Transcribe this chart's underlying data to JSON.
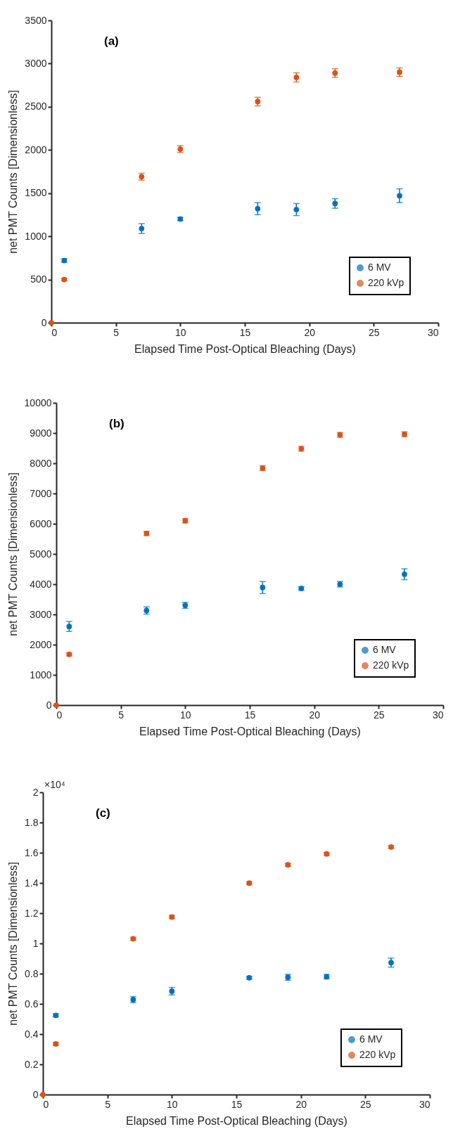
{
  "chart_data": [
    {
      "type": "scatter",
      "title": "(a)",
      "xlabel": "Elapsed Time Post-Optical Bleaching (Days)",
      "ylabel": "net PMT Counts [Dimensionless]",
      "xlim": [
        0,
        30
      ],
      "xticks": [
        0,
        5,
        10,
        15,
        20,
        25,
        30
      ],
      "ylim": [
        0,
        3500
      ],
      "yticks": [
        0,
        500,
        1000,
        1500,
        2000,
        2500,
        3000,
        3500
      ],
      "grid": false,
      "legend": "bottom right",
      "marker": "circle",
      "series": [
        {
          "name": "6 MV",
          "color": "#0072bd",
          "x": [
            1,
            7,
            10,
            16,
            19,
            22,
            27
          ],
          "values": [
            720,
            1090,
            1200,
            1320,
            1310,
            1380,
            1470
          ],
          "errors": [
            20,
            57,
            20,
            70,
            70,
            55,
            80
          ]
        },
        {
          "name": "220 kVp",
          "color": "#d95319",
          "x": [
            0,
            1,
            7,
            10,
            16,
            19,
            22,
            27
          ],
          "values": [
            0,
            500,
            1690,
            2010,
            2560,
            2840,
            2890,
            2900
          ],
          "errors": [
            null,
            15,
            40,
            40,
            50,
            53,
            50,
            50
          ]
        }
      ]
    },
    {
      "type": "scatter",
      "title": "(b)",
      "xlabel": "Elapsed Time Post-Optical Bleaching (Days)",
      "ylabel": "net PMT Counts [Dimensionless]",
      "xlim": [
        0,
        30
      ],
      "xticks": [
        0,
        5,
        10,
        15,
        20,
        25,
        30
      ],
      "ylim": [
        0,
        10000
      ],
      "yticks": [
        0,
        1000,
        2000,
        3000,
        4000,
        5000,
        6000,
        7000,
        8000,
        9000,
        10000
      ],
      "grid": false,
      "legend": "bottom right",
      "marker": "circle",
      "series": [
        {
          "name": "6 MV",
          "color": "#0072bd",
          "x": [
            1,
            7,
            10,
            16,
            19,
            22,
            27
          ],
          "values": [
            2600,
            3130,
            3300,
            3890,
            3860,
            4000,
            4330
          ],
          "errors": [
            165,
            120,
            100,
            200,
            60,
            90,
            180
          ]
        },
        {
          "name": "220 kVp",
          "color": "#d95319",
          "x": [
            0,
            1,
            7,
            10,
            16,
            19,
            22,
            27
          ],
          "values": [
            0,
            1680,
            5680,
            6100,
            7840,
            8480,
            8940,
            8960
          ],
          "errors": [
            null,
            50,
            70,
            70,
            80,
            80,
            80,
            80
          ]
        }
      ]
    },
    {
      "type": "scatter",
      "title": "(c)",
      "annotations": [
        "×10⁴"
      ],
      "xlabel": "Elapsed Time Post-Optical Bleaching (Days)",
      "ylabel": "net PMT Counts [Dimensionless]",
      "xlim": [
        0,
        30
      ],
      "xticks": [
        0,
        5,
        10,
        15,
        20,
        25,
        30
      ],
      "ylim": [
        0,
        2
      ],
      "yticks": [
        0,
        0.2,
        0.4,
        0.6,
        0.8,
        1,
        1.2,
        1.4,
        1.6,
        1.8,
        2
      ],
      "grid": false,
      "legend": "bottom right",
      "marker": "circle",
      "series": [
        {
          "name": "6 MV",
          "color": "#0072bd",
          "x": [
            1,
            7,
            10,
            16,
            19,
            22,
            27
          ],
          "values": [
            0.524,
            0.628,
            0.684,
            0.773,
            0.776,
            0.78,
            0.873
          ],
          "errors": [
            0.01,
            0.02,
            0.025,
            0.01,
            0.02,
            0.015,
            0.03
          ]
        },
        {
          "name": "220 kVp",
          "color": "#d95319",
          "x": [
            0,
            1,
            7,
            10,
            16,
            19,
            22,
            27
          ],
          "values": [
            0,
            0.335,
            1.031,
            1.175,
            1.399,
            1.52,
            1.592,
            1.638
          ],
          "errors": [
            null,
            0.01,
            0.01,
            0.01,
            0.01,
            0.01,
            0.01,
            0.01
          ]
        }
      ]
    }
  ]
}
